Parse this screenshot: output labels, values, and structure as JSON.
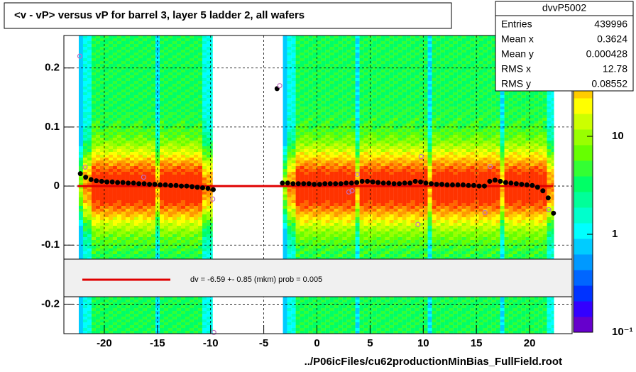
{
  "chart_data": {
    "type": "heatmap-profile",
    "title": "<v - vP>       versus   vP for barrel 3, layer 5 ladder 2, all wafers",
    "xlabel": "../P06icFiles/cu62productionMinBias_FullField.root",
    "xlim": [
      -23.8,
      24
    ],
    "ylim": [
      -0.25,
      0.255
    ],
    "xticks": [
      -20,
      -15,
      -10,
      -5,
      0,
      5,
      10,
      15,
      20
    ],
    "yticks": [
      -0.2,
      -0.1,
      0,
      0.1,
      0.2
    ],
    "zlim": [
      0.1,
      107
    ],
    "zlog": true,
    "zticks": [
      {
        "value": 0.1,
        "label": "10⁻¹"
      },
      1,
      10
    ],
    "grid": true,
    "wafer_x_ranges": [
      [
        -22.4,
        -9.8
      ],
      [
        -3.2,
        22.3
      ]
    ],
    "stats": {
      "name": "dvvP5002",
      "rows": [
        [
          "Entries",
          "439996"
        ],
        [
          "Mean x",
          "0.3624"
        ],
        [
          "Mean y",
          "0.000428"
        ],
        [
          "RMS x",
          "12.78"
        ],
        [
          "RMS y",
          "0.08552"
        ]
      ]
    },
    "fit_label": "dv =   -6.59 +-  0.85 (mkm) prob = 0.005",
    "fit": {
      "color": "#e00000",
      "x": [
        -22.5,
        22.2
      ],
      "y": [
        0,
        0
      ]
    },
    "series": [
      {
        "name": "profile",
        "color": "#000000",
        "x": [
          -22.25,
          -21.75,
          -21.25,
          -20.75,
          -20.25,
          -19.75,
          -19.25,
          -18.75,
          -18.25,
          -17.75,
          -17.25,
          -16.75,
          -16.25,
          -15.75,
          -15.25,
          -14.75,
          -14.25,
          -13.75,
          -13.25,
          -12.75,
          -12.25,
          -11.75,
          -11.25,
          -10.75,
          -10.25,
          -9.75,
          -3.75,
          -3.25,
          -2.75,
          -2.25,
          -1.75,
          -1.25,
          -0.75,
          -0.25,
          0.25,
          0.75,
          1.25,
          1.75,
          2.25,
          2.75,
          3.25,
          3.75,
          4.25,
          4.75,
          5.25,
          5.75,
          6.25,
          6.75,
          7.25,
          7.75,
          8.25,
          8.75,
          9.25,
          9.75,
          10.25,
          10.75,
          11.25,
          11.75,
          12.25,
          12.75,
          13.25,
          13.75,
          14.25,
          14.75,
          15.25,
          15.75,
          16.25,
          16.75,
          17.25,
          17.75,
          18.25,
          18.75,
          19.25,
          19.75,
          20.25,
          20.75,
          21.25,
          21.75,
          22.25
        ],
        "values": [
          0.021,
          0.015,
          0.011,
          0.009,
          0.008,
          0.007,
          0.007,
          0.006,
          0.006,
          0.005,
          0.005,
          0.004,
          0.004,
          0.003,
          0.003,
          0.002,
          0.002,
          0.001,
          0.001,
          0.0,
          0.0,
          -0.001,
          -0.002,
          -0.003,
          -0.004,
          -0.006,
          0.165,
          0.005,
          0.005,
          0.004,
          0.004,
          0.004,
          0.004,
          0.003,
          0.003,
          0.004,
          0.004,
          0.004,
          0.004,
          0.005,
          0.005,
          0.006,
          0.008,
          0.008,
          0.007,
          0.006,
          0.005,
          0.005,
          0.004,
          0.004,
          0.005,
          0.005,
          0.008,
          0.007,
          0.005,
          0.004,
          0.003,
          0.003,
          0.002,
          0.002,
          0.002,
          0.002,
          0.001,
          0.001,
          0.0,
          0.0,
          0.008,
          0.01,
          0.008,
          0.006,
          0.005,
          0.004,
          0.003,
          0.002,
          0.001,
          -0.002,
          -0.008,
          -0.02,
          -0.046
        ]
      },
      {
        "name": "open",
        "color": "#c070c0",
        "x": [
          -22.3,
          -21.8,
          -16.3,
          -9.8,
          -9.7,
          -3.5,
          3.0,
          3.3,
          3.8,
          9.5,
          9.8,
          15.8,
          16.3,
          21.8
        ],
        "values": [
          0.22,
          0.032,
          0.015,
          -0.022,
          -0.248,
          0.17,
          -0.01,
          -0.008,
          0.02,
          -0.065,
          0.05,
          -0.045,
          0.033,
          -0.04
        ]
      }
    ]
  }
}
